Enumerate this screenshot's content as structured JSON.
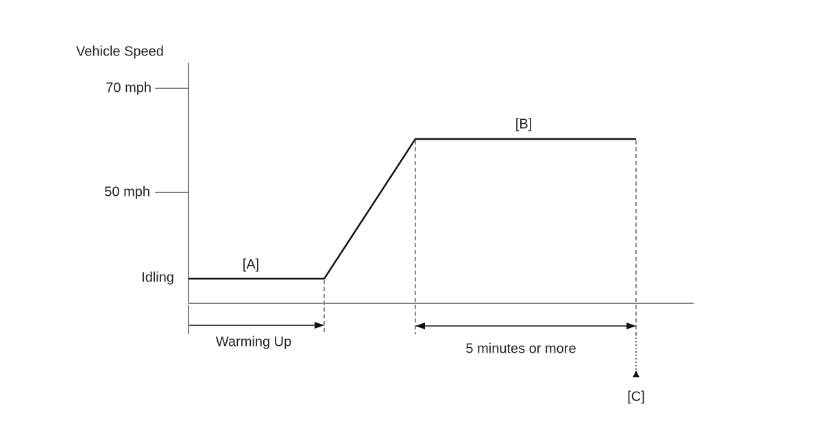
{
  "axis": {
    "label": "Vehicle Speed",
    "ticks": [
      "70 mph",
      "50 mph",
      "Idling"
    ]
  },
  "phases": {
    "a": "[A]",
    "b": "[B]",
    "c": "[C]"
  },
  "spans": {
    "warming": "Warming Up",
    "duration": "5 minutes or more"
  }
}
